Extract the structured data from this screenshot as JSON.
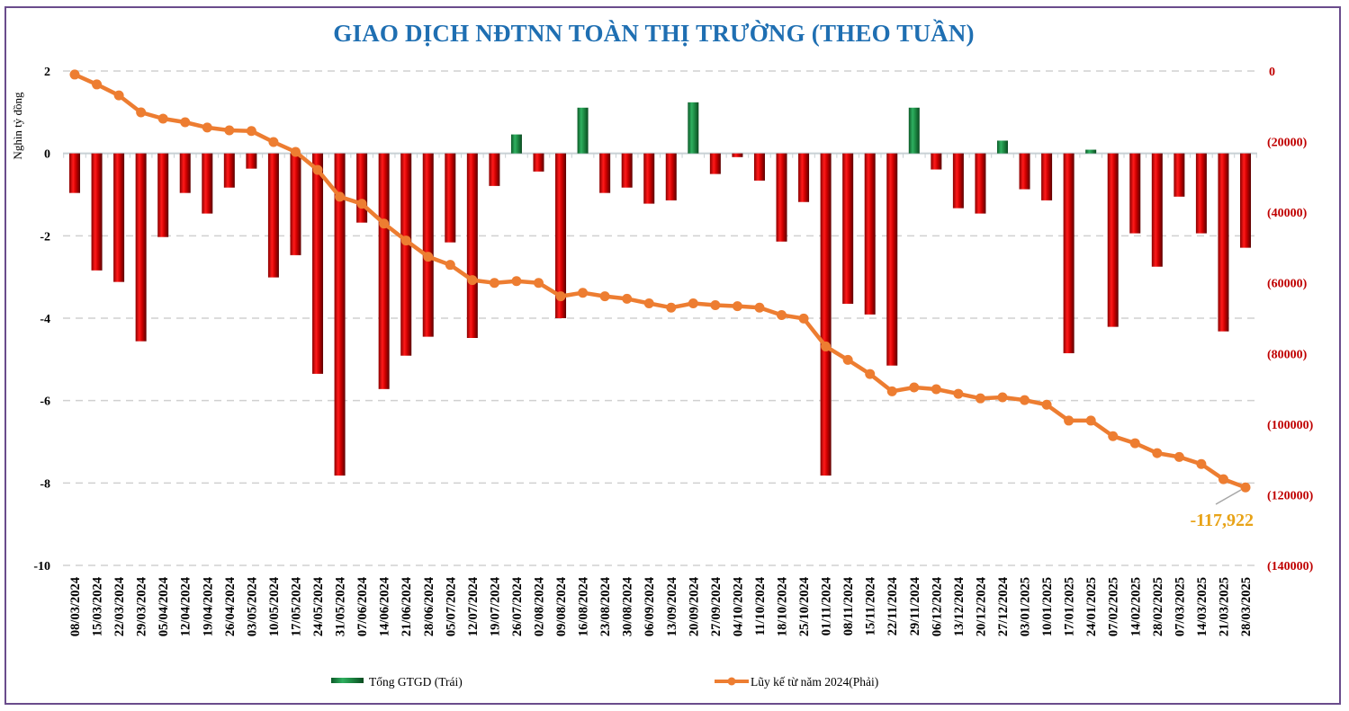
{
  "chart_data": {
    "type": "bar+line",
    "title": "GIAO DỊCH NĐTNN TOÀN THỊ TRƯỜNG (THEO TUẦN)",
    "ylabel_left": "Nghìn tỷ đồng",
    "ylim_left": [
      -10,
      2
    ],
    "yticks_left": [
      "2",
      "0",
      "-2",
      "-4",
      "-6",
      "-8",
      "-10"
    ],
    "yticks_left_values": [
      2,
      0,
      -2,
      -4,
      -6,
      -8,
      -10
    ],
    "ylim_right": [
      -140000,
      0
    ],
    "yticks_right": [
      "0",
      "(20000)",
      "(40000)",
      "(60000)",
      "(80000)",
      "(100000)",
      "(120000)",
      "(140000)"
    ],
    "yticks_right_values": [
      0,
      -20000,
      -40000,
      -60000,
      -80000,
      -100000,
      -120000,
      -140000
    ],
    "grid": true,
    "legend_position": "bottom",
    "categories": [
      "08/03/2024",
      "15/03/2024",
      "22/03/2024",
      "29/03/2024",
      "05/04/2024",
      "12/04/2024",
      "19/04/2024",
      "26/04/2024",
      "03/05/2024",
      "10/05/2024",
      "17/05/2024",
      "24/05/2024",
      "31/05/2024",
      "07/06/2024",
      "14/06/2024",
      "21/06/2024",
      "28/06/2024",
      "05/07/2024",
      "12/07/2024",
      "19/07/2024",
      "26/07/2024",
      "02/08/2024",
      "09/08/2024",
      "16/08/2024",
      "23/08/2024",
      "30/08/2024",
      "06/09/2024",
      "13/09/2024",
      "20/09/2024",
      "27/09/2024",
      "04/10/2024",
      "11/10/2024",
      "18/10/2024",
      "25/10/2024",
      "01/11/2024",
      "08/11/2024",
      "15/11/2024",
      "22/11/2024",
      "29/11/2024",
      "06/12/2024",
      "13/12/2024",
      "20/12/2024",
      "27/12/2024",
      "03/01/2025",
      "10/01/2025",
      "17/01/2025",
      "24/01/2025",
      "07/02/2025",
      "14/02/2025",
      "28/02/2025",
      "07/03/2025",
      "14/03/2025",
      "21/03/2025",
      "28/03/2025"
    ],
    "series": [
      {
        "name": "Tổng GTGD (Trái)",
        "type": "bar",
        "axis": "left",
        "positive_color": "#1e8c45",
        "negative_color": "#d00000",
        "values": [
          -0.96,
          -2.84,
          -3.12,
          -4.56,
          -2.03,
          -0.96,
          -1.46,
          -0.83,
          -0.37,
          -3.01,
          -2.47,
          -5.35,
          -7.82,
          -1.68,
          -5.72,
          -4.91,
          -4.45,
          -2.16,
          -4.48,
          -0.79,
          0.46,
          -0.44,
          -4.0,
          1.11,
          -0.96,
          -0.83,
          -1.22,
          -1.14,
          1.24,
          -0.5,
          -0.09,
          -0.66,
          -2.14,
          -1.18,
          -7.82,
          -3.65,
          -3.91,
          -5.15,
          1.11,
          -0.39,
          -1.33,
          -1.46,
          0.31,
          -0.87,
          -1.14,
          -4.85,
          0.09,
          -4.21,
          -1.94,
          -2.75,
          -1.05,
          -1.94,
          -4.32,
          -2.29
        ]
      },
      {
        "name": "Lũy kế từ năm 2024(Phải)",
        "type": "line",
        "axis": "right",
        "color": "#ed7d31",
        "values": [
          -1000,
          -3800,
          -6900,
          -11700,
          -13500,
          -14500,
          -16000,
          -16800,
          -17000,
          -20100,
          -22900,
          -28000,
          -35600,
          -37600,
          -43200,
          -48000,
          -52600,
          -54900,
          -59200,
          -60000,
          -59500,
          -60000,
          -63800,
          -62800,
          -63800,
          -64500,
          -65800,
          -67000,
          -65800,
          -66300,
          -66600,
          -67000,
          -69100,
          -70100,
          -78000,
          -81800,
          -85800,
          -90700,
          -89600,
          -90100,
          -91400,
          -92700,
          -92400,
          -93200,
          -94500,
          -99000,
          -99000,
          -103400,
          -105400,
          -108200,
          -109300,
          -111300,
          -115600,
          -117922
        ]
      }
    ],
    "annotation": "-117,922"
  }
}
